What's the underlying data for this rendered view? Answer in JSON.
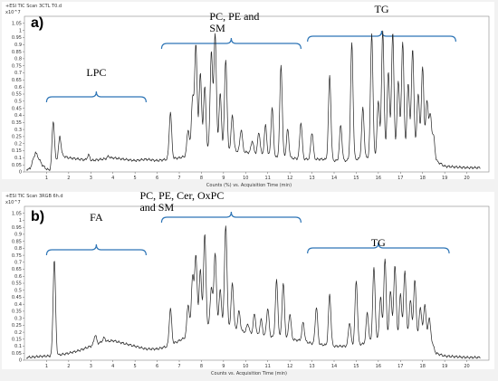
{
  "chart_data": [
    {
      "type": "line",
      "panel_label": "a)",
      "header": "+ESI TIC Scan 3CTL T0.d",
      "y_unit": "x10^7",
      "xlabel": "Counts (%) vs. Acquisition Time (min)",
      "ylabel": "",
      "xlim": [
        0,
        21
      ],
      "ylim": [
        0,
        1.1
      ],
      "x_ticks": [
        "1",
        "2",
        "3",
        "4",
        "5",
        "6",
        "7",
        "8",
        "9",
        "10",
        "11",
        "12",
        "13",
        "14",
        "15",
        "16",
        "17",
        "18",
        "19",
        "20"
      ],
      "y_ticks": [
        "0",
        "0.05",
        "0.1",
        "0.15",
        "0.2",
        "0.25",
        "0.3",
        "0.35",
        "0.4",
        "0.45",
        "0.5",
        "0.55",
        "0.6",
        "0.65",
        "0.7",
        "0.75",
        "0.8",
        "0.85",
        "0.9",
        "0.95",
        "1",
        "1.05"
      ],
      "annotations": [
        {
          "text": "LPC",
          "x_range": [
            1,
            5.5
          ]
        },
        {
          "text": "PC, PE and SM",
          "x_range": [
            6.2,
            12.5
          ]
        },
        {
          "text": "TG",
          "x_range": [
            12.8,
            19.5
          ]
        }
      ],
      "baseline": [
        [
          0.25,
          0.02
        ],
        [
          0.5,
          0.14
        ],
        [
          0.8,
          0.05
        ],
        [
          1.0,
          0.02
        ],
        [
          1.2,
          0.01
        ],
        [
          1.6,
          0.12
        ],
        [
          2.0,
          0.1
        ],
        [
          2.5,
          0.09
        ],
        [
          3.0,
          0.08
        ],
        [
          3.5,
          0.09
        ],
        [
          4.0,
          0.1
        ],
        [
          4.5,
          0.09
        ],
        [
          5.0,
          0.08
        ],
        [
          5.5,
          0.09
        ],
        [
          6.0,
          0.08
        ],
        [
          6.5,
          0.09
        ],
        [
          7.0,
          0.1
        ],
        [
          7.5,
          0.12
        ],
        [
          8.0,
          0.15
        ],
        [
          8.5,
          0.16
        ],
        [
          9.0,
          0.15
        ],
        [
          9.5,
          0.15
        ],
        [
          10.0,
          0.14
        ],
        [
          10.5,
          0.13
        ],
        [
          11.0,
          0.11
        ],
        [
          11.5,
          0.1
        ],
        [
          12.0,
          0.1
        ],
        [
          12.5,
          0.09
        ],
        [
          13.0,
          0.09
        ],
        [
          13.5,
          0.09
        ],
        [
          14.0,
          0.08
        ],
        [
          14.5,
          0.08
        ],
        [
          15.0,
          0.09
        ],
        [
          15.5,
          0.1
        ],
        [
          16.0,
          0.11
        ],
        [
          16.5,
          0.12
        ],
        [
          17.0,
          0.14
        ],
        [
          17.5,
          0.16
        ],
        [
          18.0,
          0.16
        ],
        [
          18.4,
          0.15
        ],
        [
          18.6,
          0.08
        ],
        [
          19.0,
          0.04
        ],
        [
          20.0,
          0.03
        ],
        [
          21.0,
          0.03
        ]
      ],
      "peaks": [
        {
          "x": 1.3,
          "y": 0.36
        },
        {
          "x": 1.6,
          "y": 0.25
        },
        {
          "x": 2.9,
          "y": 0.12
        },
        {
          "x": 3.8,
          "y": 0.11
        },
        {
          "x": 6.6,
          "y": 0.42
        },
        {
          "x": 7.4,
          "y": 0.3
        },
        {
          "x": 7.6,
          "y": 0.52
        },
        {
          "x": 7.75,
          "y": 0.9
        },
        {
          "x": 7.95,
          "y": 0.7
        },
        {
          "x": 8.15,
          "y": 0.6
        },
        {
          "x": 8.45,
          "y": 0.85
        },
        {
          "x": 8.62,
          "y": 0.98
        },
        {
          "x": 8.85,
          "y": 0.55
        },
        {
          "x": 9.1,
          "y": 0.8
        },
        {
          "x": 9.4,
          "y": 0.4
        },
        {
          "x": 9.8,
          "y": 0.3
        },
        {
          "x": 10.3,
          "y": 0.22
        },
        {
          "x": 10.6,
          "y": 0.28
        },
        {
          "x": 10.9,
          "y": 0.33
        },
        {
          "x": 11.2,
          "y": 0.45
        },
        {
          "x": 11.6,
          "y": 0.75
        },
        {
          "x": 11.9,
          "y": 0.3
        },
        {
          "x": 12.5,
          "y": 0.35
        },
        {
          "x": 13.0,
          "y": 0.28
        },
        {
          "x": 13.8,
          "y": 0.68
        },
        {
          "x": 14.3,
          "y": 0.33
        },
        {
          "x": 14.8,
          "y": 0.91
        },
        {
          "x": 15.3,
          "y": 0.45
        },
        {
          "x": 15.7,
          "y": 0.98
        },
        {
          "x": 16.0,
          "y": 0.5
        },
        {
          "x": 16.2,
          "y": 1.0
        },
        {
          "x": 16.45,
          "y": 0.7
        },
        {
          "x": 16.65,
          "y": 0.98
        },
        {
          "x": 16.9,
          "y": 0.65
        },
        {
          "x": 17.1,
          "y": 0.92
        },
        {
          "x": 17.35,
          "y": 0.62
        },
        {
          "x": 17.55,
          "y": 0.87
        },
        {
          "x": 17.8,
          "y": 0.55
        },
        {
          "x": 18.0,
          "y": 0.74
        },
        {
          "x": 18.2,
          "y": 0.5
        },
        {
          "x": 18.35,
          "y": 0.4
        },
        {
          "x": 18.5,
          "y": 0.25
        }
      ]
    },
    {
      "type": "line",
      "panel_label": "b)",
      "header": "+ESI TIC Scan 3RGB 6h.d",
      "y_unit": "x10^7",
      "xlabel": "Counts vs. Acquisition Time (min)",
      "ylabel": "",
      "xlim": [
        0,
        21
      ],
      "ylim": [
        0,
        1.1
      ],
      "x_ticks": [
        "1",
        "2",
        "3",
        "4",
        "5",
        "6",
        "7",
        "8",
        "9",
        "10",
        "11",
        "12",
        "13",
        "14",
        "15",
        "16",
        "17",
        "18",
        "19",
        "20"
      ],
      "y_ticks": [
        "0",
        "0.05",
        "0.1",
        "0.15",
        "0.2",
        "0.25",
        "0.3",
        "0.35",
        "0.4",
        "0.45",
        "0.5",
        "0.55",
        "0.6",
        "0.65",
        "0.7",
        "0.75",
        "0.8",
        "0.85",
        "0.9",
        "0.95",
        "1",
        "1.05"
      ],
      "annotations": [
        {
          "text": "FA",
          "x_range": [
            1,
            5.5
          ]
        },
        {
          "text": "PC, PE, Cer, OxPC and SM",
          "x_range": [
            6.2,
            12.5
          ]
        },
        {
          "text": "TG",
          "x_range": [
            12.8,
            19.2
          ]
        }
      ],
      "baseline": [
        [
          0.1,
          0.02
        ],
        [
          1.0,
          0.03
        ],
        [
          1.3,
          0.03
        ],
        [
          2.0,
          0.05
        ],
        [
          2.5,
          0.07
        ],
        [
          3.0,
          0.1
        ],
        [
          3.5,
          0.13
        ],
        [
          4.0,
          0.14
        ],
        [
          4.5,
          0.12
        ],
        [
          5.0,
          0.1
        ],
        [
          5.5,
          0.08
        ],
        [
          6.0,
          0.08
        ],
        [
          6.5,
          0.1
        ],
        [
          7.0,
          0.14
        ],
        [
          7.5,
          0.18
        ],
        [
          8.0,
          0.22
        ],
        [
          8.5,
          0.24
        ],
        [
          9.0,
          0.25
        ],
        [
          9.5,
          0.22
        ],
        [
          10.0,
          0.2
        ],
        [
          10.5,
          0.18
        ],
        [
          11.0,
          0.17
        ],
        [
          11.5,
          0.16
        ],
        [
          12.0,
          0.15
        ],
        [
          12.5,
          0.14
        ],
        [
          13.0,
          0.12
        ],
        [
          13.5,
          0.11
        ],
        [
          14.0,
          0.1
        ],
        [
          14.5,
          0.1
        ],
        [
          15.0,
          0.11
        ],
        [
          15.5,
          0.12
        ],
        [
          16.0,
          0.14
        ],
        [
          16.5,
          0.15
        ],
        [
          17.0,
          0.16
        ],
        [
          17.5,
          0.17
        ],
        [
          18.0,
          0.16
        ],
        [
          18.4,
          0.14
        ],
        [
          18.6,
          0.05
        ],
        [
          19.0,
          0.03
        ],
        [
          20.0,
          0.02
        ],
        [
          21.0,
          0.02
        ]
      ],
      "peaks": [
        {
          "x": 1.35,
          "y": 0.72
        },
        {
          "x": 3.2,
          "y": 0.18
        },
        {
          "x": 3.6,
          "y": 0.16
        },
        {
          "x": 6.6,
          "y": 0.37
        },
        {
          "x": 7.4,
          "y": 0.4
        },
        {
          "x": 7.6,
          "y": 0.6
        },
        {
          "x": 7.75,
          "y": 0.75
        },
        {
          "x": 7.95,
          "y": 0.65
        },
        {
          "x": 8.15,
          "y": 0.9
        },
        {
          "x": 8.45,
          "y": 0.52
        },
        {
          "x": 8.62,
          "y": 0.77
        },
        {
          "x": 8.85,
          "y": 0.5
        },
        {
          "x": 9.1,
          "y": 0.97
        },
        {
          "x": 9.4,
          "y": 0.55
        },
        {
          "x": 9.7,
          "y": 0.35
        },
        {
          "x": 10.1,
          "y": 0.26
        },
        {
          "x": 10.4,
          "y": 0.33
        },
        {
          "x": 10.7,
          "y": 0.29
        },
        {
          "x": 11.0,
          "y": 0.37
        },
        {
          "x": 11.4,
          "y": 0.57
        },
        {
          "x": 11.7,
          "y": 0.55
        },
        {
          "x": 12.0,
          "y": 0.33
        },
        {
          "x": 12.6,
          "y": 0.27
        },
        {
          "x": 13.2,
          "y": 0.38
        },
        {
          "x": 13.8,
          "y": 0.47
        },
        {
          "x": 14.7,
          "y": 0.27
        },
        {
          "x": 15.0,
          "y": 0.57
        },
        {
          "x": 15.5,
          "y": 0.34
        },
        {
          "x": 15.8,
          "y": 0.66
        },
        {
          "x": 16.1,
          "y": 0.45
        },
        {
          "x": 16.3,
          "y": 0.72
        },
        {
          "x": 16.55,
          "y": 0.5
        },
        {
          "x": 16.75,
          "y": 0.68
        },
        {
          "x": 17.0,
          "y": 0.47
        },
        {
          "x": 17.2,
          "y": 0.64
        },
        {
          "x": 17.45,
          "y": 0.43
        },
        {
          "x": 17.65,
          "y": 0.57
        },
        {
          "x": 17.9,
          "y": 0.38
        },
        {
          "x": 18.1,
          "y": 0.4
        },
        {
          "x": 18.3,
          "y": 0.3
        }
      ]
    }
  ]
}
